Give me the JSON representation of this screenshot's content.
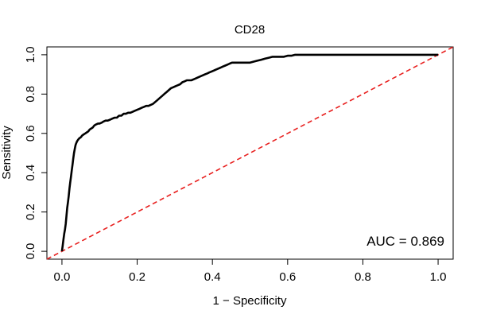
{
  "chart_data": {
    "type": "line",
    "title": "CD28",
    "xlabel": "1 − Specificity",
    "ylabel": "Sensitivity",
    "xlim": [
      -0.04,
      1.04
    ],
    "ylim": [
      -0.04,
      1.04
    ],
    "x_ticks": [
      0.0,
      0.2,
      0.4,
      0.6,
      0.8,
      1.0
    ],
    "x_tick_labels": [
      "0.0",
      "0.2",
      "0.4",
      "0.6",
      "0.8",
      "1.0"
    ],
    "y_ticks": [
      0.0,
      0.2,
      0.4,
      0.6,
      0.8,
      1.0
    ],
    "y_tick_labels": [
      "0.0",
      "0.2",
      "0.4",
      "0.6",
      "0.8",
      "1.0"
    ],
    "annotation": "AUC = 0.869",
    "grid": false,
    "series": [
      {
        "kind": "roc-curve",
        "color": "#000000",
        "x": [
          0.0,
          0.002,
          0.004,
          0.006,
          0.008,
          0.01,
          0.012,
          0.014,
          0.016,
          0.018,
          0.02,
          0.022,
          0.024,
          0.026,
          0.028,
          0.03,
          0.032,
          0.034,
          0.036,
          0.038,
          0.04,
          0.042,
          0.044,
          0.046,
          0.05,
          0.054,
          0.058,
          0.062,
          0.066,
          0.07,
          0.074,
          0.078,
          0.082,
          0.086,
          0.09,
          0.096,
          0.1,
          0.106,
          0.11,
          0.116,
          0.122,
          0.128,
          0.134,
          0.14,
          0.146,
          0.152,
          0.158,
          0.164,
          0.17,
          0.176,
          0.182,
          0.188,
          0.194,
          0.2,
          0.206,
          0.212,
          0.218,
          0.224,
          0.23,
          0.236,
          0.242,
          0.248,
          0.254,
          0.26,
          0.266,
          0.272,
          0.278,
          0.284,
          0.29,
          0.296,
          0.302,
          0.308,
          0.314,
          0.32,
          0.326,
          0.332,
          0.338,
          0.344,
          0.35,
          0.356,
          0.362,
          0.368,
          0.374,
          0.38,
          0.386,
          0.392,
          0.398,
          0.404,
          0.41,
          0.416,
          0.422,
          0.428,
          0.434,
          0.44,
          0.446,
          0.452,
          0.46,
          0.47,
          0.48,
          0.49,
          0.5,
          0.51,
          0.52,
          0.53,
          0.54,
          0.55,
          0.56,
          0.57,
          0.58,
          0.59,
          0.6,
          0.61,
          0.62,
          0.63,
          0.64,
          0.66,
          0.7,
          0.75,
          0.8,
          0.85,
          0.9,
          0.95,
          1.0
        ],
        "y": [
          0.0,
          0.03,
          0.06,
          0.09,
          0.11,
          0.14,
          0.18,
          0.22,
          0.25,
          0.28,
          0.32,
          0.35,
          0.38,
          0.41,
          0.44,
          0.47,
          0.5,
          0.52,
          0.54,
          0.55,
          0.56,
          0.565,
          0.57,
          0.575,
          0.58,
          0.59,
          0.595,
          0.6,
          0.605,
          0.61,
          0.62,
          0.625,
          0.63,
          0.64,
          0.645,
          0.65,
          0.65,
          0.655,
          0.66,
          0.665,
          0.665,
          0.67,
          0.675,
          0.68,
          0.68,
          0.69,
          0.69,
          0.7,
          0.7,
          0.705,
          0.705,
          0.71,
          0.715,
          0.72,
          0.725,
          0.73,
          0.735,
          0.74,
          0.74,
          0.745,
          0.75,
          0.76,
          0.77,
          0.78,
          0.79,
          0.8,
          0.81,
          0.82,
          0.83,
          0.835,
          0.84,
          0.845,
          0.85,
          0.86,
          0.865,
          0.87,
          0.87,
          0.87,
          0.875,
          0.88,
          0.885,
          0.89,
          0.895,
          0.9,
          0.905,
          0.91,
          0.915,
          0.92,
          0.925,
          0.93,
          0.935,
          0.94,
          0.945,
          0.95,
          0.955,
          0.96,
          0.96,
          0.96,
          0.96,
          0.96,
          0.96,
          0.965,
          0.97,
          0.975,
          0.98,
          0.985,
          0.99,
          0.99,
          0.99,
          0.99,
          0.995,
          0.995,
          1.0,
          1.0,
          1.0,
          1.0,
          1.0,
          1.0,
          1.0,
          1.0,
          1.0,
          1.0,
          1.0
        ]
      },
      {
        "kind": "reference-diagonal",
        "color": "#e8201f",
        "style": "dashed",
        "x": [
          -0.04,
          1.04
        ],
        "y": [
          -0.04,
          1.04
        ]
      }
    ]
  }
}
